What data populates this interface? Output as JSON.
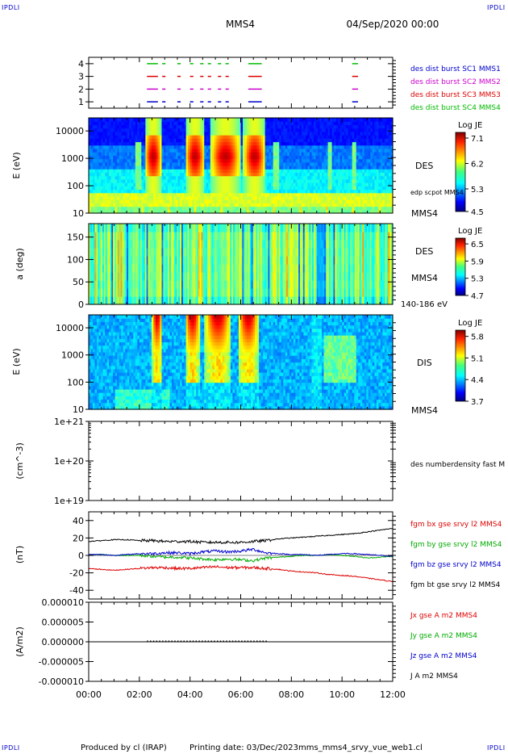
{
  "header": {
    "spacecraft": "MMS4",
    "date": "04/Sep/2020 00:00",
    "corner_left_top": "IPDLI",
    "corner_right_top": "IPDLI",
    "corner_left_bottom": "IPDLI",
    "corner_right_bottom": "IPDLI"
  },
  "footer": {
    "produced_by": "Produced by cl (IRAP)",
    "printing_date": "Printing date: 03/Dec/2023",
    "script": "mms_mms4_srvy_vue_web1.cl"
  },
  "time_axis": {
    "ticks": [
      "00:00",
      "02:00",
      "04:00",
      "06:00",
      "08:00",
      "10:00",
      "12:00"
    ],
    "range_hours": [
      0,
      12
    ]
  },
  "colors": {
    "mms1": "#0000cc",
    "mms2": "#cc00cc",
    "mms3": "#dd0000",
    "mms4": "#00bb00",
    "bx": "#dd0000",
    "by": "#00aa00",
    "bz": "#0000cc",
    "bt": "#000000"
  },
  "chart_data": [
    {
      "type": "scatter",
      "panel": "burst",
      "yticks": [
        "4",
        "3",
        "2",
        "1"
      ],
      "ylim": [
        0.5,
        4.5
      ],
      "legend": [
        {
          "label": "des dist burst SC1 MMS1",
          "color": "#0000cc"
        },
        {
          "label": "des dist burst SC2 MMS2",
          "color": "#cc00cc"
        },
        {
          "label": "des dist burst SC3 MMS3",
          "color": "#dd0000"
        },
        {
          "label": "des dist burst SC4 MMS4",
          "color": "#00bb00"
        }
      ],
      "intervals_hours": [
        [
          2.3,
          2.7
        ],
        [
          2.9,
          3.0
        ],
        [
          3.5,
          3.6
        ],
        [
          4.0,
          4.1
        ],
        [
          4.4,
          4.5
        ],
        [
          4.7,
          4.8
        ],
        [
          5.1,
          5.2
        ],
        [
          5.4,
          5.5
        ],
        [
          6.3,
          6.8
        ],
        [
          10.4,
          10.6
        ]
      ]
    },
    {
      "type": "heatmap",
      "panel": "des-energy",
      "ylabel": "E (eV)",
      "yticks": [
        "10000",
        "1000",
        "100",
        "10"
      ],
      "ylim": [
        10,
        30000
      ],
      "yscale": "log",
      "instrument": "DES",
      "spacecraft": "MMS4",
      "annotation": "edp scpot MMS4",
      "colorbar": {
        "title": "Log JE",
        "ticks": [
          "7.1",
          "6.2",
          "5.3",
          "4.5"
        ],
        "range": [
          4.5,
          7.3
        ]
      },
      "hot_intervals_hours": [
        [
          2.2,
          2.9
        ],
        [
          3.8,
          4.6
        ],
        [
          4.8,
          6.0
        ],
        [
          6.1,
          7.0
        ]
      ]
    },
    {
      "type": "heatmap",
      "panel": "des-pitch",
      "ylabel": "a (deg)",
      "yticks": [
        "150",
        "100",
        "50",
        "0"
      ],
      "ylim": [
        0,
        180
      ],
      "instrument": "DES",
      "spacecraft": "MMS4",
      "annotation": "140-186 eV",
      "colorbar": {
        "title": "Log JE",
        "ticks": [
          "6.5",
          "5.9",
          "5.3",
          "4.7"
        ],
        "range": [
          4.7,
          6.7
        ]
      }
    },
    {
      "type": "heatmap",
      "panel": "dis-energy",
      "ylabel": "E (eV)",
      "yticks": [
        "10000",
        "1000",
        "100",
        "10"
      ],
      "ylim": [
        10,
        30000
      ],
      "yscale": "log",
      "instrument": "DIS",
      "spacecraft": "MMS4",
      "colorbar": {
        "title": "Log JE",
        "ticks": [
          "5.8",
          "5.1",
          "4.4",
          "3.7"
        ],
        "range": [
          3.7,
          6.0
        ]
      },
      "hot_intervals_hours": [
        [
          2.5,
          2.9
        ],
        [
          3.8,
          4.4
        ],
        [
          4.6,
          5.6
        ],
        [
          5.9,
          6.7
        ]
      ]
    },
    {
      "type": "line",
      "panel": "density",
      "ylabel": "(cm^-3)",
      "yticks": [
        "1e+21",
        "1e+20",
        "1e+19"
      ],
      "ylim": [
        1e+19,
        1e+21
      ],
      "yscale": "log",
      "series": [
        {
          "name": "des numberdensity fast M",
          "values": []
        }
      ]
    },
    {
      "type": "line",
      "panel": "magnetic-field",
      "ylabel": "(nT)",
      "yticks": [
        "40",
        "20",
        "0",
        "-20",
        "-40"
      ],
      "ylim": [
        -50,
        50
      ],
      "x": [
        0,
        0.5,
        1,
        1.5,
        2,
        2.5,
        3,
        3.5,
        4,
        4.5,
        5,
        5.5,
        6,
        6.5,
        7,
        7.5,
        8,
        8.5,
        9,
        9.5,
        10,
        10.5,
        11,
        11.5,
        12
      ],
      "series": [
        {
          "name": "fgm bx gse srvy l2 MMS4",
          "color": "#dd0000",
          "values": [
            -15,
            -16,
            -17,
            -16,
            -15,
            -14,
            -14,
            -15,
            -15,
            -14,
            -13,
            -14,
            -14,
            -14,
            -15,
            -16,
            -18,
            -19,
            -20,
            -22,
            -23,
            -24,
            -26,
            -28,
            -30
          ]
        },
        {
          "name": "fgm by gse srvy l2 MMS4",
          "color": "#00aa00",
          "values": [
            1,
            1,
            0,
            0,
            0,
            -1,
            -2,
            -2,
            -3,
            -4,
            -5,
            -4,
            -5,
            -6,
            -3,
            -2,
            -1,
            0,
            0,
            1,
            0,
            -1,
            -3,
            -2,
            -1
          ]
        },
        {
          "name": "fgm bz gse srvy l2 MMS4",
          "color": "#0000cc",
          "values": [
            1,
            1,
            0,
            1,
            2,
            2,
            3,
            3,
            2,
            4,
            5,
            4,
            5,
            7,
            3,
            2,
            1,
            1,
            0,
            1,
            2,
            2,
            1,
            0,
            -1
          ]
        },
        {
          "name": "fgm bt gse srvy l2 MMS4",
          "color": "#000000",
          "values": [
            16,
            17,
            18,
            18,
            17,
            17,
            16,
            16,
            16,
            15,
            15,
            15,
            15,
            16,
            17,
            19,
            20,
            21,
            22,
            23,
            24,
            25,
            27,
            29,
            31
          ]
        }
      ]
    },
    {
      "type": "line",
      "panel": "current",
      "ylabel": "(A/m2)",
      "yticks": [
        "0.000010",
        "0.000005",
        "0.000000",
        "-0.000005",
        "-0.000010"
      ],
      "ylim": [
        -1e-05,
        1e-05
      ],
      "series": [
        {
          "name": "Jx gse A m2 MMS4",
          "color": "#dd0000",
          "values": []
        },
        {
          "name": "Jy gse A m2 MMS4",
          "color": "#00aa00",
          "values": []
        },
        {
          "name": "Jz gse A m2 MMS4",
          "color": "#0000cc",
          "values": []
        },
        {
          "name": "J A m2 MMS4",
          "color": "#000000",
          "values": []
        }
      ]
    }
  ]
}
